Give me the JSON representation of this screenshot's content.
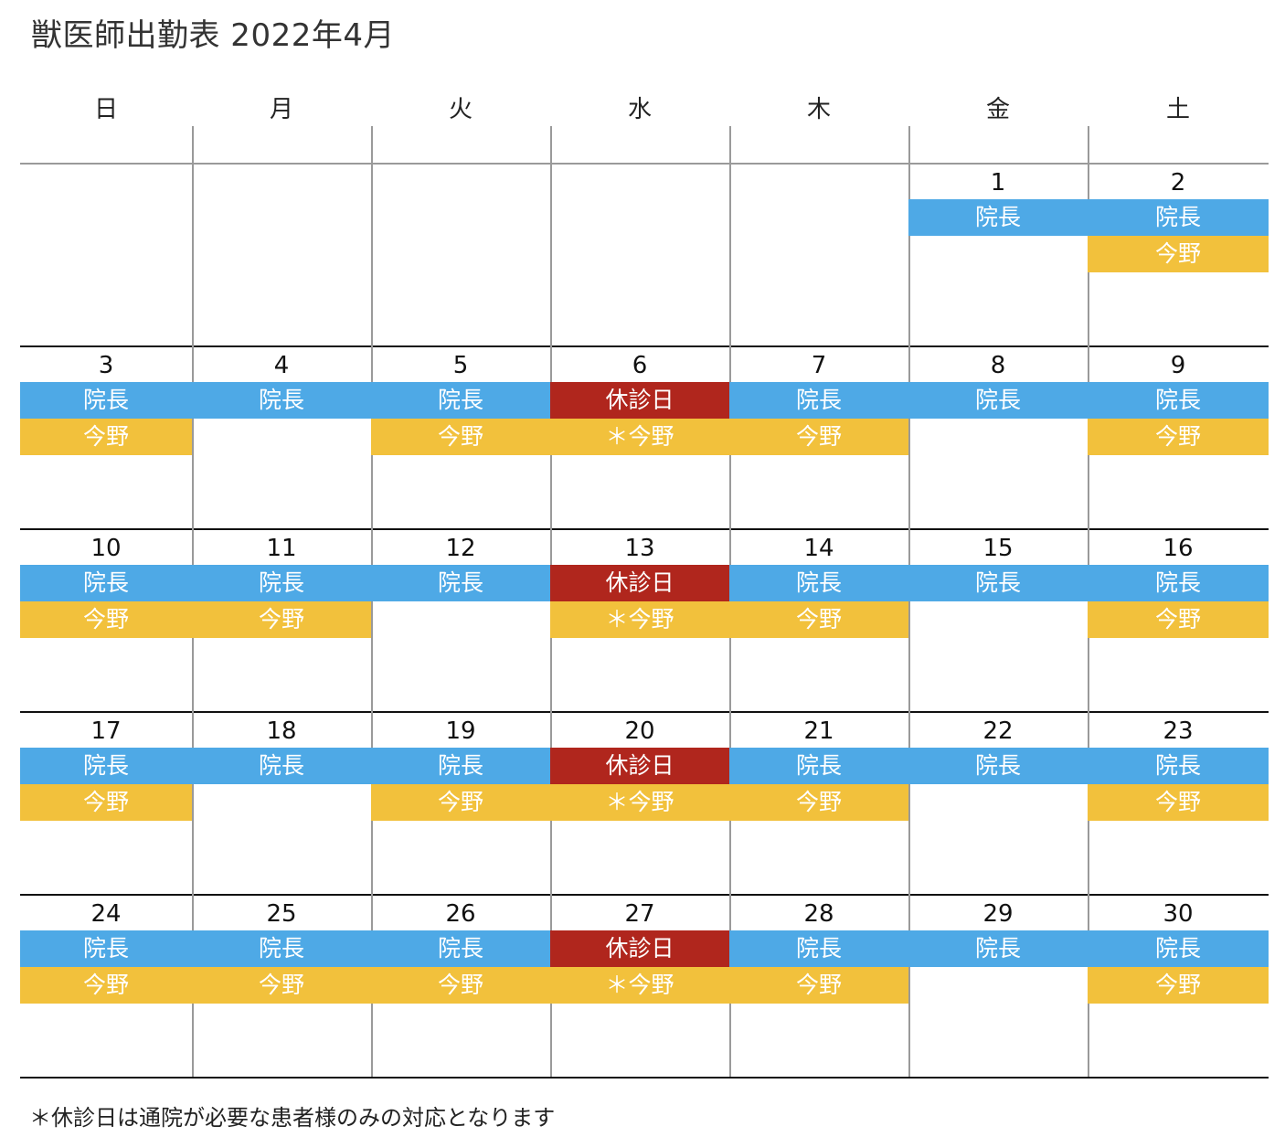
{
  "title": "獣医師出勤表 2022年4月",
  "weekdays": [
    "日",
    "月",
    "火",
    "水",
    "木",
    "金",
    "土"
  ],
  "weeks": [
    [
      {
        "day": "",
        "shifts": []
      },
      {
        "day": "",
        "shifts": []
      },
      {
        "day": "",
        "shifts": []
      },
      {
        "day": "",
        "shifts": []
      },
      {
        "day": "",
        "shifts": []
      },
      {
        "day": "1",
        "shifts": [
          {
            "label": "院長",
            "kind": "blue"
          }
        ]
      },
      {
        "day": "2",
        "shifts": [
          {
            "label": "院長",
            "kind": "blue"
          },
          {
            "label": "今野",
            "kind": "yellow"
          }
        ]
      }
    ],
    [
      {
        "day": "3",
        "shifts": [
          {
            "label": "院長",
            "kind": "blue"
          },
          {
            "label": "今野",
            "kind": "yellow"
          }
        ]
      },
      {
        "day": "4",
        "shifts": [
          {
            "label": "院長",
            "kind": "blue"
          }
        ]
      },
      {
        "day": "5",
        "shifts": [
          {
            "label": "院長",
            "kind": "blue"
          },
          {
            "label": "今野",
            "kind": "yellow"
          }
        ]
      },
      {
        "day": "6",
        "shifts": [
          {
            "label": "休診日",
            "kind": "red"
          },
          {
            "label": "＊今野",
            "kind": "yellow"
          }
        ]
      },
      {
        "day": "7",
        "shifts": [
          {
            "label": "院長",
            "kind": "blue"
          },
          {
            "label": "今野",
            "kind": "yellow"
          }
        ]
      },
      {
        "day": "8",
        "shifts": [
          {
            "label": "院長",
            "kind": "blue"
          }
        ]
      },
      {
        "day": "9",
        "shifts": [
          {
            "label": "院長",
            "kind": "blue"
          },
          {
            "label": "今野",
            "kind": "yellow"
          }
        ]
      }
    ],
    [
      {
        "day": "10",
        "shifts": [
          {
            "label": "院長",
            "kind": "blue"
          },
          {
            "label": "今野",
            "kind": "yellow"
          }
        ]
      },
      {
        "day": "11",
        "shifts": [
          {
            "label": "院長",
            "kind": "blue"
          },
          {
            "label": "今野",
            "kind": "yellow"
          }
        ]
      },
      {
        "day": "12",
        "shifts": [
          {
            "label": "院長",
            "kind": "blue"
          }
        ]
      },
      {
        "day": "13",
        "shifts": [
          {
            "label": "休診日",
            "kind": "red"
          },
          {
            "label": "＊今野",
            "kind": "yellow"
          }
        ]
      },
      {
        "day": "14",
        "shifts": [
          {
            "label": "院長",
            "kind": "blue"
          },
          {
            "label": "今野",
            "kind": "yellow"
          }
        ]
      },
      {
        "day": "15",
        "shifts": [
          {
            "label": "院長",
            "kind": "blue"
          }
        ]
      },
      {
        "day": "16",
        "shifts": [
          {
            "label": "院長",
            "kind": "blue"
          },
          {
            "label": "今野",
            "kind": "yellow"
          }
        ]
      }
    ],
    [
      {
        "day": "17",
        "shifts": [
          {
            "label": "院長",
            "kind": "blue"
          },
          {
            "label": "今野",
            "kind": "yellow"
          }
        ]
      },
      {
        "day": "18",
        "shifts": [
          {
            "label": "院長",
            "kind": "blue"
          }
        ]
      },
      {
        "day": "19",
        "shifts": [
          {
            "label": "院長",
            "kind": "blue"
          },
          {
            "label": "今野",
            "kind": "yellow"
          }
        ]
      },
      {
        "day": "20",
        "shifts": [
          {
            "label": "休診日",
            "kind": "red"
          },
          {
            "label": "＊今野",
            "kind": "yellow"
          }
        ]
      },
      {
        "day": "21",
        "shifts": [
          {
            "label": "院長",
            "kind": "blue"
          },
          {
            "label": "今野",
            "kind": "yellow"
          }
        ]
      },
      {
        "day": "22",
        "shifts": [
          {
            "label": "院長",
            "kind": "blue"
          }
        ]
      },
      {
        "day": "23",
        "shifts": [
          {
            "label": "院長",
            "kind": "blue"
          },
          {
            "label": "今野",
            "kind": "yellow"
          }
        ]
      }
    ],
    [
      {
        "day": "24",
        "shifts": [
          {
            "label": "院長",
            "kind": "blue"
          },
          {
            "label": "今野",
            "kind": "yellow"
          }
        ]
      },
      {
        "day": "25",
        "shifts": [
          {
            "label": "院長",
            "kind": "blue"
          },
          {
            "label": "今野",
            "kind": "yellow"
          }
        ]
      },
      {
        "day": "26",
        "shifts": [
          {
            "label": "院長",
            "kind": "blue"
          },
          {
            "label": "今野",
            "kind": "yellow"
          }
        ]
      },
      {
        "day": "27",
        "shifts": [
          {
            "label": "休診日",
            "kind": "red"
          },
          {
            "label": "＊今野",
            "kind": "yellow"
          }
        ]
      },
      {
        "day": "28",
        "shifts": [
          {
            "label": "院長",
            "kind": "blue"
          },
          {
            "label": "今野",
            "kind": "yellow"
          }
        ]
      },
      {
        "day": "29",
        "shifts": [
          {
            "label": "院長",
            "kind": "blue"
          }
        ]
      },
      {
        "day": "30",
        "shifts": [
          {
            "label": "院長",
            "kind": "blue"
          },
          {
            "label": "今野",
            "kind": "yellow"
          }
        ]
      }
    ]
  ],
  "footnote": "＊休診日は通院が必要な患者様のみの対応となります",
  "colors": {
    "director": "#4ea9e6",
    "konno": "#f2c13c",
    "closed": "#b0261d",
    "grid": "#9a9a9a"
  }
}
